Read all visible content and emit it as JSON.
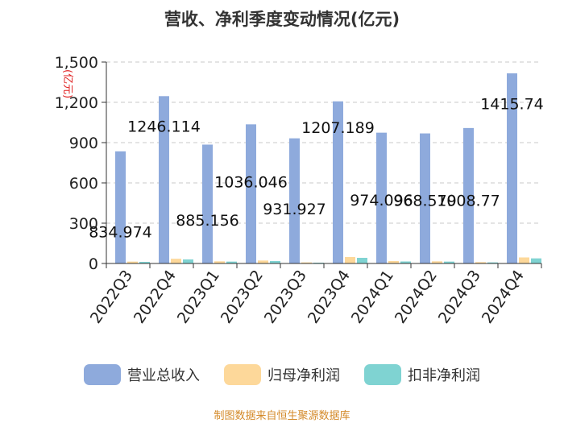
{
  "chart_data": {
    "type": "bar",
    "title": "营收、净利季度变动情况(亿元)",
    "ylabel": "(亿元)",
    "xlabel": "",
    "categories": [
      "2022Q3",
      "2022Q4",
      "2023Q1",
      "2023Q2",
      "2023Q3",
      "2023Q4",
      "2024Q1",
      "2024Q2",
      "2024Q3",
      "2024Q4"
    ],
    "series": [
      {
        "name": "营业总收入",
        "color": "#8eaadc",
        "values": [
          834.974,
          1246.114,
          885.156,
          1036.046,
          931.927,
          1207.189,
          974.096,
          968.579,
          1008.77,
          1415.74
        ]
      },
      {
        "name": "归母净利润",
        "color": "#fdd89a",
        "values": [
          14,
          35,
          16,
          22,
          8,
          48,
          18,
          16,
          10,
          45
        ]
      },
      {
        "name": "扣非净利润",
        "color": "#7fd3d2",
        "values": [
          12,
          30,
          14,
          18,
          6,
          42,
          15,
          14,
          8,
          38
        ]
      }
    ],
    "data_labels": [
      "834.974",
      "1246.114",
      "885.156",
      "1036.046",
      "931.927",
      "1207.189",
      "974.096",
      "968.579",
      "1008.77",
      "1415.74"
    ],
    "yticks": [
      "0",
      "300",
      "600",
      "900",
      "1,200",
      "1,500"
    ],
    "ylim": [
      0,
      1500
    ],
    "grid": "dashed-horizontal",
    "legend": "bottom"
  },
  "source": "制图数据来自恒生聚源数据库"
}
